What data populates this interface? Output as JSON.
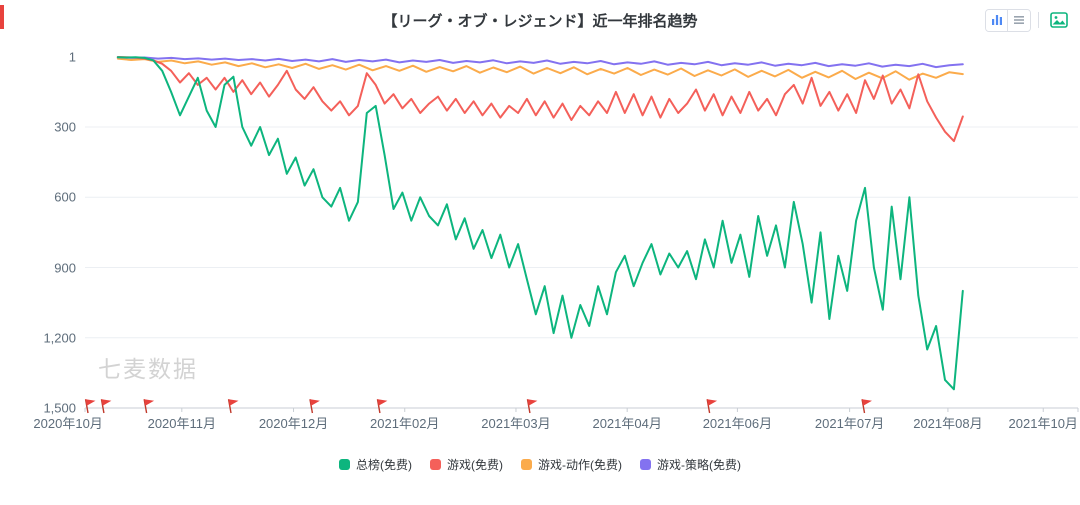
{
  "watermark": "七麦数据",
  "header": {
    "controls": {
      "view_buttons": [
        {
          "icon": "bar-chart-icon"
        },
        {
          "icon": "list-view-icon"
        }
      ],
      "export_button": {
        "icon": "image-export-icon"
      }
    }
  },
  "chart_data": {
    "type": "line",
    "title": "【リーグ・オブ・レジェンド】近一年排名趋势",
    "legend_position": "bottom",
    "grid": true,
    "y_axis": {
      "inverted": true,
      "min": 1,
      "max": 1500,
      "ticks": [
        1,
        300,
        600,
        900,
        1200,
        1500
      ],
      "labels": [
        "1",
        "300",
        "600",
        "900",
        "1,200",
        "1,500"
      ]
    },
    "x_axis": {
      "labels": [
        "2020年10月",
        "2020年11月",
        "2020年12月",
        "2021年02月",
        "2021年03月",
        "2021年04月",
        "2021年06月",
        "2021年07月",
        "2021年08月",
        "2021年10月"
      ],
      "fractions": [
        -0.017,
        0.0975,
        0.21,
        0.322,
        0.434,
        0.546,
        0.657,
        0.77,
        0.869,
        0.965
      ]
    },
    "flags_fractions": [
      0.003,
      0.019,
      0.062,
      0.147,
      0.229,
      0.297,
      0.448,
      0.629,
      0.785
    ],
    "series": [
      {
        "name": "总榜(免费)",
        "color": "#0db57e",
        "x_start": 0.033,
        "x_end": 0.884,
        "values": [
          2,
          3,
          2,
          5,
          15,
          60,
          150,
          250,
          170,
          90,
          230,
          300,
          120,
          85,
          300,
          380,
          300,
          420,
          350,
          500,
          430,
          550,
          480,
          600,
          640,
          560,
          700,
          620,
          240,
          210,
          420,
          650,
          580,
          700,
          600,
          680,
          720,
          630,
          780,
          690,
          820,
          740,
          860,
          760,
          900,
          800,
          950,
          1100,
          980,
          1180,
          1020,
          1200,
          1060,
          1150,
          980,
          1100,
          920,
          850,
          980,
          880,
          800,
          930,
          840,
          900,
          830,
          950,
          780,
          900,
          700,
          880,
          760,
          940,
          680,
          850,
          720,
          900,
          620,
          800,
          1050,
          750,
          1120,
          850,
          1000,
          700,
          560,
          900,
          1080,
          640,
          950,
          600,
          1020,
          1250,
          1150,
          1380,
          1420,
          1000
        ]
      },
      {
        "name": "游戏(免费)",
        "color": "#f4605a",
        "x_start": 0.033,
        "x_end": 0.884,
        "values": [
          1,
          2,
          4,
          8,
          15,
          30,
          60,
          110,
          70,
          120,
          90,
          140,
          90,
          150,
          100,
          160,
          110,
          170,
          120,
          60,
          140,
          180,
          130,
          190,
          230,
          190,
          250,
          210,
          70,
          120,
          200,
          160,
          220,
          180,
          240,
          200,
          170,
          230,
          180,
          240,
          190,
          250,
          200,
          260,
          210,
          240,
          180,
          250,
          190,
          260,
          200,
          270,
          210,
          250,
          190,
          240,
          150,
          240,
          160,
          250,
          170,
          260,
          180,
          240,
          200,
          140,
          230,
          160,
          250,
          170,
          240,
          150,
          230,
          180,
          250,
          160,
          120,
          200,
          90,
          210,
          150,
          230,
          160,
          240,
          100,
          180,
          80,
          200,
          140,
          220,
          75,
          190,
          260,
          320,
          360,
          255
        ]
      },
      {
        "name": "游戏-动作(免费)",
        "color": "#fbab4b",
        "x_start": 0.033,
        "x_end": 0.884,
        "values": [
          8,
          14,
          10,
          22,
          16,
          28,
          20,
          34,
          24,
          40,
          28,
          45,
          32,
          48,
          30,
          52,
          36,
          55,
          34,
          58,
          40,
          60,
          38,
          64,
          44,
          62,
          40,
          68,
          46,
          66,
          42,
          72,
          48,
          70,
          45,
          75,
          52,
          72,
          48,
          78,
          55,
          76,
          50,
          82,
          58,
          80,
          54,
          86,
          60,
          84,
          56,
          90,
          64,
          88,
          60,
          95,
          68,
          92,
          62,
          98,
          72,
          90,
          66,
          74
        ]
      },
      {
        "name": "游戏-策略(免费)",
        "color": "#8372f0",
        "x_start": 0.033,
        "x_end": 0.884,
        "values": [
          2,
          5,
          3,
          8,
          5,
          10,
          7,
          12,
          8,
          14,
          10,
          16,
          9,
          18,
          12,
          20,
          10,
          22,
          14,
          20,
          12,
          24,
          16,
          22,
          14,
          26,
          18,
          24,
          15,
          28,
          20,
          26,
          16,
          30,
          22,
          28,
          18,
          32,
          24,
          30,
          20,
          34,
          26,
          32,
          22,
          36,
          28,
          34,
          24,
          38,
          30,
          36,
          26,
          40,
          32,
          38,
          28,
          42,
          34,
          40,
          30,
          44,
          36,
          32
        ]
      }
    ]
  }
}
